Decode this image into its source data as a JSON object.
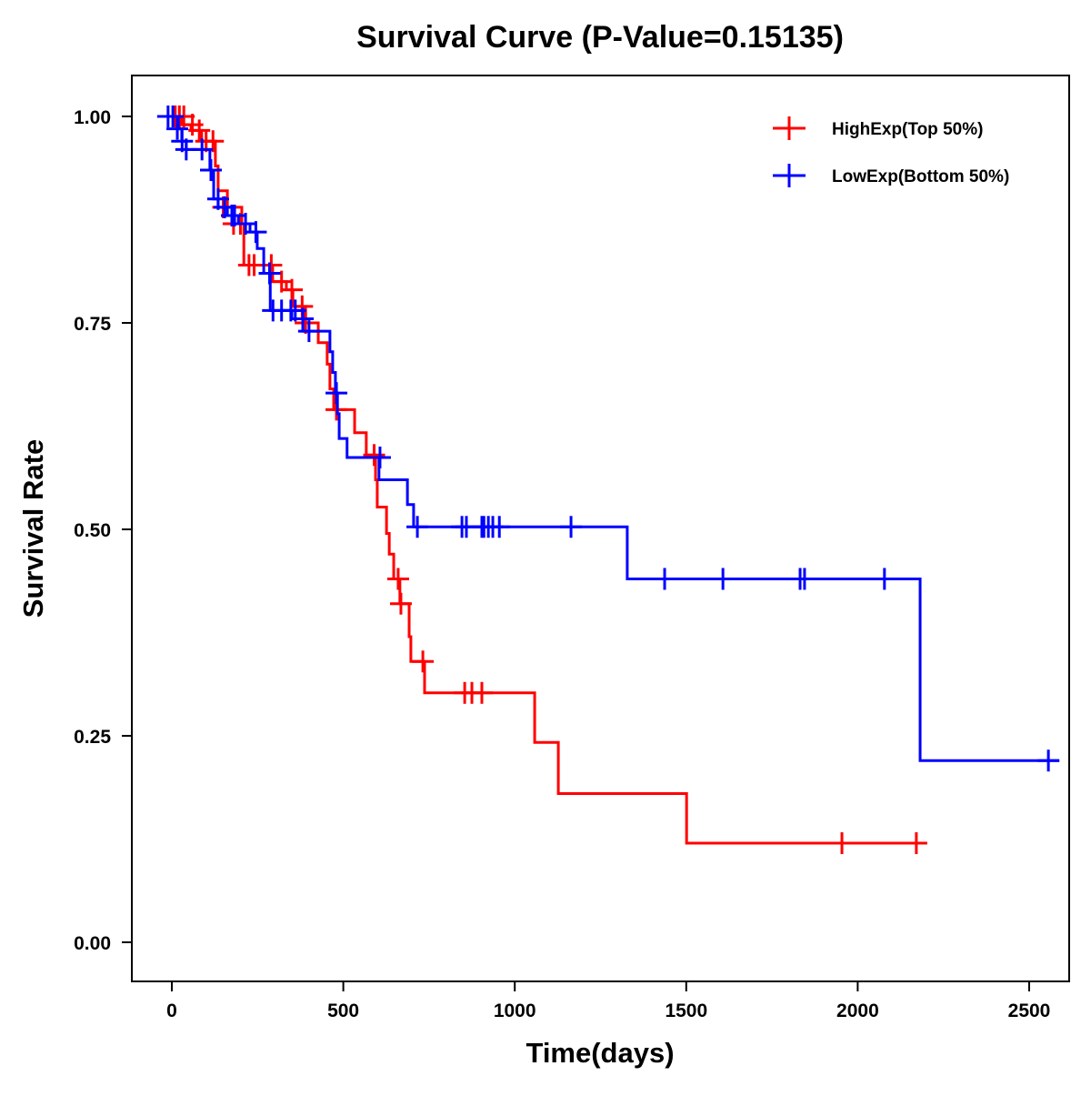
{
  "chart_data": {
    "type": "line",
    "subtype": "kaplan-meier-step",
    "title": "Survival Curve (P-Value=0.15135)",
    "xlabel": "Time(days)",
    "ylabel": "Survival Rate",
    "xlim": [
      -110,
      2625
    ],
    "ylim": [
      -0.05,
      1.05
    ],
    "xticks": [
      0,
      500,
      1000,
      1500,
      2000,
      2500
    ],
    "xtick_labels": [
      "0",
      "500",
      "1000",
      "1500",
      "2000",
      "2500"
    ],
    "yticks": [
      0,
      0.25,
      0.5,
      0.75,
      1.0
    ],
    "ytick_labels": [
      "0.00",
      "0.25",
      "0.50",
      "0.75",
      "1.00"
    ],
    "grid": false,
    "legend_position": "top-right",
    "series": [
      {
        "name": "HighExp(Top 50%)",
        "color": "#ff0000",
        "steps": [
          [
            0,
            1.0
          ],
          [
            29,
            0.99
          ],
          [
            56,
            0.983
          ],
          [
            87,
            0.97
          ],
          [
            127,
            0.94
          ],
          [
            135,
            0.91
          ],
          [
            162,
            0.89
          ],
          [
            204,
            0.87
          ],
          [
            210,
            0.82
          ],
          [
            294,
            0.8
          ],
          [
            334,
            0.79
          ],
          [
            353,
            0.77
          ],
          [
            390,
            0.75
          ],
          [
            427,
            0.726
          ],
          [
            453,
            0.7
          ],
          [
            461,
            0.67
          ],
          [
            472,
            0.645
          ],
          [
            533,
            0.617
          ],
          [
            567,
            0.59
          ],
          [
            594,
            0.56
          ],
          [
            599,
            0.527
          ],
          [
            626,
            0.495
          ],
          [
            634,
            0.47
          ],
          [
            647,
            0.44
          ],
          [
            665,
            0.41
          ],
          [
            692,
            0.37
          ],
          [
            697,
            0.34
          ],
          [
            737,
            0.302
          ],
          [
            1058,
            0.242
          ],
          [
            1127,
            0.18
          ],
          [
            1501,
            0.12
          ],
          [
            2198,
            0.12
          ]
        ],
        "censored": [
          [
            10,
            1.0
          ],
          [
            22,
            1.0
          ],
          [
            35,
            1.0
          ],
          [
            60,
            0.99
          ],
          [
            80,
            0.983
          ],
          [
            100,
            0.97
          ],
          [
            120,
            0.97
          ],
          [
            150,
            0.89
          ],
          [
            180,
            0.87
          ],
          [
            200,
            0.87
          ],
          [
            225,
            0.82
          ],
          [
            240,
            0.82
          ],
          [
            290,
            0.82
          ],
          [
            320,
            0.8
          ],
          [
            350,
            0.79
          ],
          [
            380,
            0.77
          ],
          [
            390,
            0.75
          ],
          [
            480,
            0.645
          ],
          [
            590,
            0.59
          ],
          [
            660,
            0.44
          ],
          [
            668,
            0.41
          ],
          [
            732,
            0.34
          ],
          [
            854,
            0.302
          ],
          [
            875,
            0.302
          ],
          [
            904,
            0.302
          ],
          [
            1954,
            0.12
          ],
          [
            2171,
            0.12
          ]
        ]
      },
      {
        "name": "LowExp(Bottom 50%)",
        "color": "#0000ff",
        "steps": [
          [
            0,
            1.0
          ],
          [
            19,
            0.985
          ],
          [
            29,
            0.97
          ],
          [
            42,
            0.96
          ],
          [
            111,
            0.935
          ],
          [
            122,
            0.9
          ],
          [
            135,
            0.89
          ],
          [
            162,
            0.88
          ],
          [
            194,
            0.87
          ],
          [
            228,
            0.86
          ],
          [
            249,
            0.84
          ],
          [
            268,
            0.81
          ],
          [
            287,
            0.765
          ],
          [
            350,
            0.755
          ],
          [
            382,
            0.74
          ],
          [
            461,
            0.715
          ],
          [
            469,
            0.69
          ],
          [
            477,
            0.665
          ],
          [
            483,
            0.64
          ],
          [
            488,
            0.61
          ],
          [
            511,
            0.587
          ],
          [
            604,
            0.56
          ],
          [
            687,
            0.53
          ],
          [
            705,
            0.503
          ],
          [
            1328,
            0.44
          ],
          [
            2182,
            0.22
          ],
          [
            2588,
            0.22
          ]
        ],
        "censored": [
          [
            -11,
            1.0
          ],
          [
            3,
            1.0
          ],
          [
            16,
            0.985
          ],
          [
            30,
            0.97
          ],
          [
            42,
            0.96
          ],
          [
            88,
            0.96
          ],
          [
            114,
            0.935
          ],
          [
            135,
            0.9
          ],
          [
            154,
            0.89
          ],
          [
            175,
            0.88
          ],
          [
            183,
            0.88
          ],
          [
            215,
            0.87
          ],
          [
            245,
            0.86
          ],
          [
            285,
            0.81
          ],
          [
            295,
            0.765
          ],
          [
            320,
            0.765
          ],
          [
            347,
            0.765
          ],
          [
            360,
            0.765
          ],
          [
            382,
            0.755
          ],
          [
            400,
            0.74
          ],
          [
            480,
            0.665
          ],
          [
            607,
            0.587
          ],
          [
            716,
            0.503
          ],
          [
            846,
            0.503
          ],
          [
            859,
            0.503
          ],
          [
            904,
            0.503
          ],
          [
            910,
            0.503
          ],
          [
            923,
            0.503
          ],
          [
            936,
            0.503
          ],
          [
            955,
            0.503
          ],
          [
            1164,
            0.503
          ],
          [
            1437,
            0.44
          ],
          [
            1607,
            0.44
          ],
          [
            1832,
            0.44
          ],
          [
            1845,
            0.44
          ],
          [
            2078,
            0.44
          ],
          [
            2556,
            0.22
          ]
        ]
      }
    ]
  }
}
